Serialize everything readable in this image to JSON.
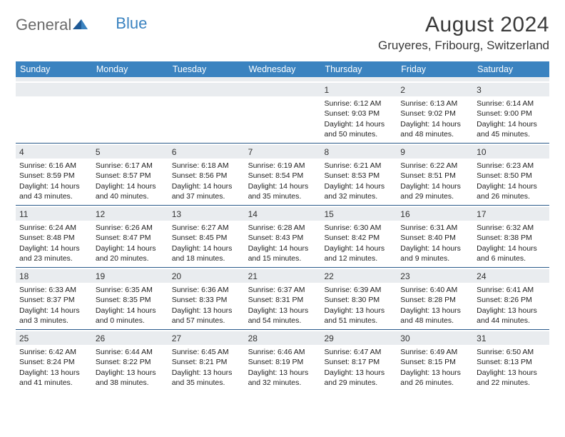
{
  "logo": {
    "text1": "General",
    "text2": "Blue"
  },
  "title": "August 2024",
  "location": "Gruyeres, Fribourg, Switzerland",
  "colors": {
    "header_bg": "#3b83c0",
    "header_text": "#ffffff",
    "daynum_bg": "#e9ecef",
    "divider": "#2a5a8a",
    "body_text": "#222222",
    "logo_gray": "#6a6a6a",
    "logo_blue": "#3b83c0"
  },
  "dayNames": [
    "Sunday",
    "Monday",
    "Tuesday",
    "Wednesday",
    "Thursday",
    "Friday",
    "Saturday"
  ],
  "weeks": [
    [
      {
        "num": "",
        "lines": []
      },
      {
        "num": "",
        "lines": []
      },
      {
        "num": "",
        "lines": []
      },
      {
        "num": "",
        "lines": []
      },
      {
        "num": "1",
        "lines": [
          "Sunrise: 6:12 AM",
          "Sunset: 9:03 PM",
          "Daylight: 14 hours",
          "and 50 minutes."
        ]
      },
      {
        "num": "2",
        "lines": [
          "Sunrise: 6:13 AM",
          "Sunset: 9:02 PM",
          "Daylight: 14 hours",
          "and 48 minutes."
        ]
      },
      {
        "num": "3",
        "lines": [
          "Sunrise: 6:14 AM",
          "Sunset: 9:00 PM",
          "Daylight: 14 hours",
          "and 45 minutes."
        ]
      }
    ],
    [
      {
        "num": "4",
        "lines": [
          "Sunrise: 6:16 AM",
          "Sunset: 8:59 PM",
          "Daylight: 14 hours",
          "and 43 minutes."
        ]
      },
      {
        "num": "5",
        "lines": [
          "Sunrise: 6:17 AM",
          "Sunset: 8:57 PM",
          "Daylight: 14 hours",
          "and 40 minutes."
        ]
      },
      {
        "num": "6",
        "lines": [
          "Sunrise: 6:18 AM",
          "Sunset: 8:56 PM",
          "Daylight: 14 hours",
          "and 37 minutes."
        ]
      },
      {
        "num": "7",
        "lines": [
          "Sunrise: 6:19 AM",
          "Sunset: 8:54 PM",
          "Daylight: 14 hours",
          "and 35 minutes."
        ]
      },
      {
        "num": "8",
        "lines": [
          "Sunrise: 6:21 AM",
          "Sunset: 8:53 PM",
          "Daylight: 14 hours",
          "and 32 minutes."
        ]
      },
      {
        "num": "9",
        "lines": [
          "Sunrise: 6:22 AM",
          "Sunset: 8:51 PM",
          "Daylight: 14 hours",
          "and 29 minutes."
        ]
      },
      {
        "num": "10",
        "lines": [
          "Sunrise: 6:23 AM",
          "Sunset: 8:50 PM",
          "Daylight: 14 hours",
          "and 26 minutes."
        ]
      }
    ],
    [
      {
        "num": "11",
        "lines": [
          "Sunrise: 6:24 AM",
          "Sunset: 8:48 PM",
          "Daylight: 14 hours",
          "and 23 minutes."
        ]
      },
      {
        "num": "12",
        "lines": [
          "Sunrise: 6:26 AM",
          "Sunset: 8:47 PM",
          "Daylight: 14 hours",
          "and 20 minutes."
        ]
      },
      {
        "num": "13",
        "lines": [
          "Sunrise: 6:27 AM",
          "Sunset: 8:45 PM",
          "Daylight: 14 hours",
          "and 18 minutes."
        ]
      },
      {
        "num": "14",
        "lines": [
          "Sunrise: 6:28 AM",
          "Sunset: 8:43 PM",
          "Daylight: 14 hours",
          "and 15 minutes."
        ]
      },
      {
        "num": "15",
        "lines": [
          "Sunrise: 6:30 AM",
          "Sunset: 8:42 PM",
          "Daylight: 14 hours",
          "and 12 minutes."
        ]
      },
      {
        "num": "16",
        "lines": [
          "Sunrise: 6:31 AM",
          "Sunset: 8:40 PM",
          "Daylight: 14 hours",
          "and 9 minutes."
        ]
      },
      {
        "num": "17",
        "lines": [
          "Sunrise: 6:32 AM",
          "Sunset: 8:38 PM",
          "Daylight: 14 hours",
          "and 6 minutes."
        ]
      }
    ],
    [
      {
        "num": "18",
        "lines": [
          "Sunrise: 6:33 AM",
          "Sunset: 8:37 PM",
          "Daylight: 14 hours",
          "and 3 minutes."
        ]
      },
      {
        "num": "19",
        "lines": [
          "Sunrise: 6:35 AM",
          "Sunset: 8:35 PM",
          "Daylight: 14 hours",
          "and 0 minutes."
        ]
      },
      {
        "num": "20",
        "lines": [
          "Sunrise: 6:36 AM",
          "Sunset: 8:33 PM",
          "Daylight: 13 hours",
          "and 57 minutes."
        ]
      },
      {
        "num": "21",
        "lines": [
          "Sunrise: 6:37 AM",
          "Sunset: 8:31 PM",
          "Daylight: 13 hours",
          "and 54 minutes."
        ]
      },
      {
        "num": "22",
        "lines": [
          "Sunrise: 6:39 AM",
          "Sunset: 8:30 PM",
          "Daylight: 13 hours",
          "and 51 minutes."
        ]
      },
      {
        "num": "23",
        "lines": [
          "Sunrise: 6:40 AM",
          "Sunset: 8:28 PM",
          "Daylight: 13 hours",
          "and 48 minutes."
        ]
      },
      {
        "num": "24",
        "lines": [
          "Sunrise: 6:41 AM",
          "Sunset: 8:26 PM",
          "Daylight: 13 hours",
          "and 44 minutes."
        ]
      }
    ],
    [
      {
        "num": "25",
        "lines": [
          "Sunrise: 6:42 AM",
          "Sunset: 8:24 PM",
          "Daylight: 13 hours",
          "and 41 minutes."
        ]
      },
      {
        "num": "26",
        "lines": [
          "Sunrise: 6:44 AM",
          "Sunset: 8:22 PM",
          "Daylight: 13 hours",
          "and 38 minutes."
        ]
      },
      {
        "num": "27",
        "lines": [
          "Sunrise: 6:45 AM",
          "Sunset: 8:21 PM",
          "Daylight: 13 hours",
          "and 35 minutes."
        ]
      },
      {
        "num": "28",
        "lines": [
          "Sunrise: 6:46 AM",
          "Sunset: 8:19 PM",
          "Daylight: 13 hours",
          "and 32 minutes."
        ]
      },
      {
        "num": "29",
        "lines": [
          "Sunrise: 6:47 AM",
          "Sunset: 8:17 PM",
          "Daylight: 13 hours",
          "and 29 minutes."
        ]
      },
      {
        "num": "30",
        "lines": [
          "Sunrise: 6:49 AM",
          "Sunset: 8:15 PM",
          "Daylight: 13 hours",
          "and 26 minutes."
        ]
      },
      {
        "num": "31",
        "lines": [
          "Sunrise: 6:50 AM",
          "Sunset: 8:13 PM",
          "Daylight: 13 hours",
          "and 22 minutes."
        ]
      }
    ]
  ]
}
